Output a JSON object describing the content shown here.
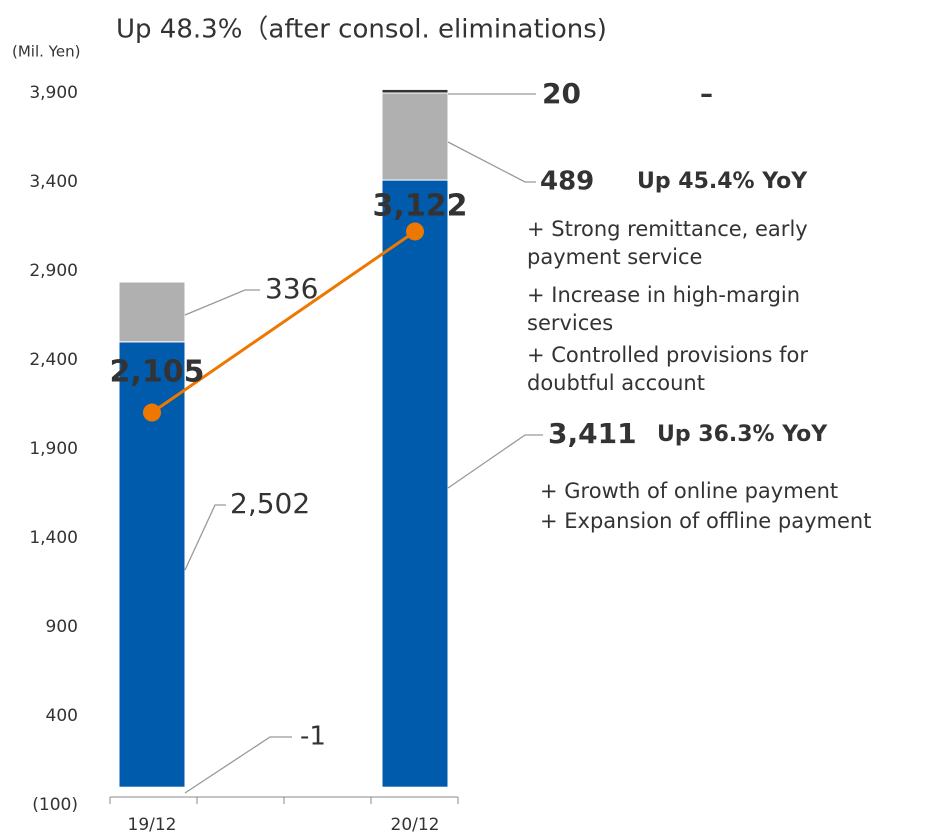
{
  "chart_data": {
    "type": "bar",
    "stacked": true,
    "title": "Up 48.3%（after consol. eliminations)",
    "y_label": "(Mil. Yen)",
    "categories": [
      "19/12",
      "20/12"
    ],
    "series": [
      {
        "color": "#e00000",
        "values": [
          -1,
          null
        ],
        "value_labels": [
          "-1",
          null
        ]
      },
      {
        "color": "#005bac",
        "values": [
          2502,
          3411
        ],
        "value_labels": [
          "2,502",
          "3,411"
        ]
      },
      {
        "color": "#b0b0b0",
        "values": [
          336,
          489
        ],
        "value_labels": [
          "336",
          "489"
        ]
      },
      {
        "color": "#333333",
        "values": [
          null,
          20
        ],
        "value_labels": [
          null,
          "20"
        ]
      },
      {
        "type": "line",
        "color": "#ee7700",
        "values": [
          2105,
          3122
        ],
        "value_labels": [
          "2,105",
          "3,122"
        ]
      }
    ],
    "ylim": [
      -100,
      3900
    ],
    "yticks": [
      {
        "value": -100,
        "label": "(100)"
      },
      400,
      900,
      {
        "value": 1400,
        "label": "1,400"
      },
      {
        "value": 1900,
        "label": "1,900"
      },
      {
        "value": 2400,
        "label": "2,400"
      },
      {
        "value": 2900,
        "label": "2,900"
      },
      {
        "value": 3400,
        "label": "3,400"
      },
      {
        "value": 3900,
        "label": "3,900"
      }
    ],
    "annotations": [
      "–",
      "Up 45.4% YoY",
      "+ Strong remittance, early",
      "payment service",
      "+ Increase in high-margin",
      "services",
      "+ Controlled provisions for",
      "doubtful account",
      "Up 36.3% YoY",
      "+ Growth of online payment",
      "+ Expansion of offline payment"
    ]
  }
}
